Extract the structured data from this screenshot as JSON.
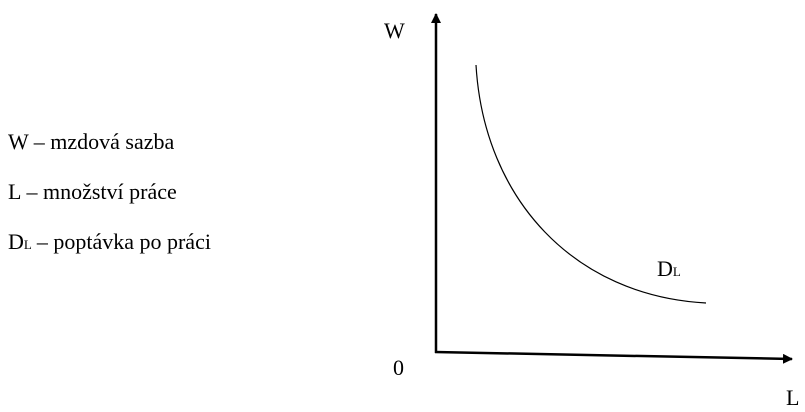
{
  "legend": [
    {
      "symbol": "W",
      "text": "– mzdová sazba"
    },
    {
      "symbol": "L",
      "text": "– množství práce"
    },
    {
      "symbol": "D",
      "sub": "L",
      "text": "– poptávka po práci"
    }
  ],
  "axes": {
    "y_label": "W",
    "x_label": "L",
    "origin": "0"
  },
  "curve_label": {
    "symbol": "D",
    "sub": "L"
  }
}
